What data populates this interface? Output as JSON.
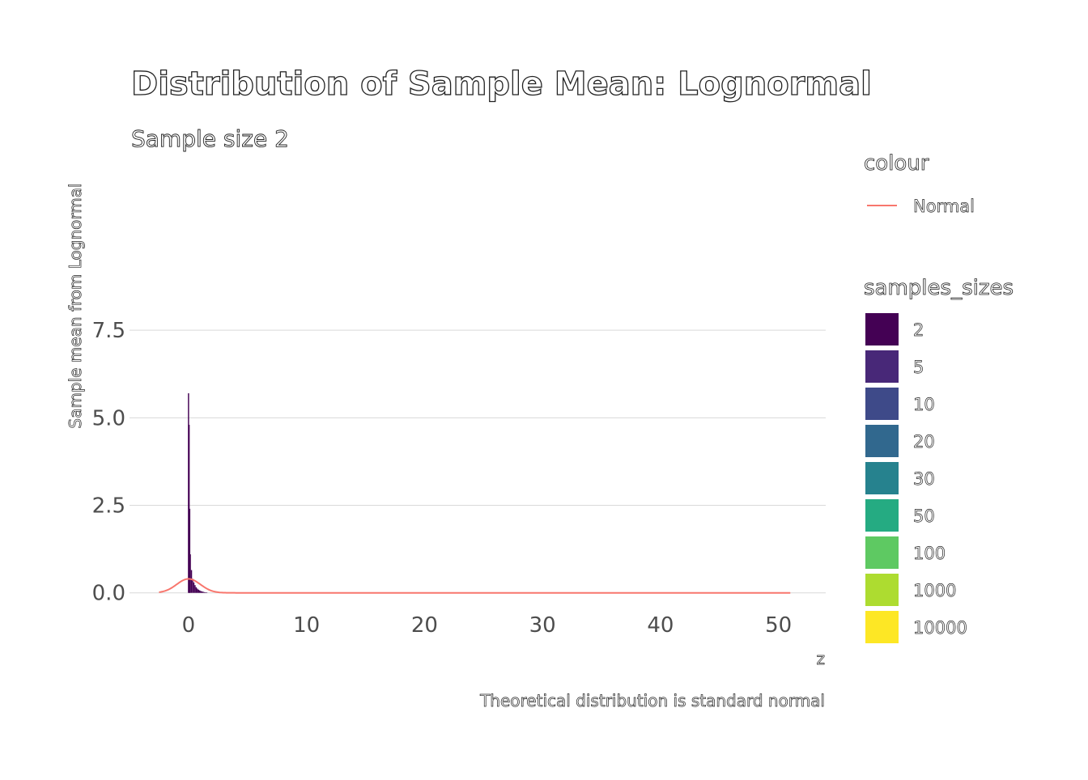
{
  "chart_data": {
    "type": "bar",
    "title": "Distribution of Sample Mean: Lognormal",
    "subtitle": "Sample size 2",
    "xlabel": "z",
    "ylabel": "Sample mean from Lognormal",
    "caption": "Theoretical distribution is standard normal",
    "xlim": [
      -5,
      54
    ],
    "ylim": [
      -0.4,
      10
    ],
    "x_ticks": [
      0,
      10,
      20,
      30,
      40,
      50
    ],
    "x_tick_labels": [
      "0",
      "10",
      "20",
      "30",
      "40",
      "50"
    ],
    "y_ticks": [
      0,
      2.5,
      5,
      7.5
    ],
    "y_tick_labels": [
      "0.0",
      "2.5",
      "5.0",
      "7.5"
    ],
    "grid": "horizontal major lines",
    "legend_position": "right",
    "histogram": {
      "series": "2",
      "color": "#440154",
      "bin_width": 0.1,
      "bins": [
        {
          "x": -0.05,
          "density": 0.0
        },
        {
          "x": 0.0,
          "density": 5.7
        },
        {
          "x": 0.05,
          "density": 4.8
        },
        {
          "x": 0.1,
          "density": 2.4
        },
        {
          "x": 0.15,
          "density": 1.1
        },
        {
          "x": 0.25,
          "density": 0.65
        },
        {
          "x": 0.35,
          "density": 0.4
        },
        {
          "x": 0.45,
          "density": 0.3
        },
        {
          "x": 0.55,
          "density": 0.22
        },
        {
          "x": 0.65,
          "density": 0.16
        },
        {
          "x": 0.75,
          "density": 0.12
        },
        {
          "x": 0.85,
          "density": 0.09
        },
        {
          "x": 0.95,
          "density": 0.07
        },
        {
          "x": 1.05,
          "density": 0.05
        },
        {
          "x": 1.15,
          "density": 0.04
        },
        {
          "x": 1.25,
          "density": 0.03
        },
        {
          "x": 1.35,
          "density": 0.02
        },
        {
          "x": 1.45,
          "density": 0.015
        },
        {
          "x": 1.55,
          "density": 0.01
        }
      ]
    },
    "normal_curve": {
      "name": "Normal",
      "color": "#f8766d",
      "x_range": [
        -2.5,
        51
      ]
    },
    "legend": {
      "colour": {
        "title": "colour",
        "entries": [
          {
            "label": "Normal",
            "color": "#f8766d"
          }
        ]
      },
      "fill": {
        "title": "samples_sizes",
        "entries": [
          {
            "label": "2",
            "color": "#440154"
          },
          {
            "label": "5",
            "color": "#482878"
          },
          {
            "label": "10",
            "color": "#3e4a89"
          },
          {
            "label": "20",
            "color": "#31688e"
          },
          {
            "label": "30",
            "color": "#26828e"
          },
          {
            "label": "50",
            "color": "#25ab82"
          },
          {
            "label": "100",
            "color": "#5ec962"
          },
          {
            "label": "1000",
            "color": "#addc30"
          },
          {
            "label": "10000",
            "color": "#fde725"
          }
        ]
      }
    }
  }
}
